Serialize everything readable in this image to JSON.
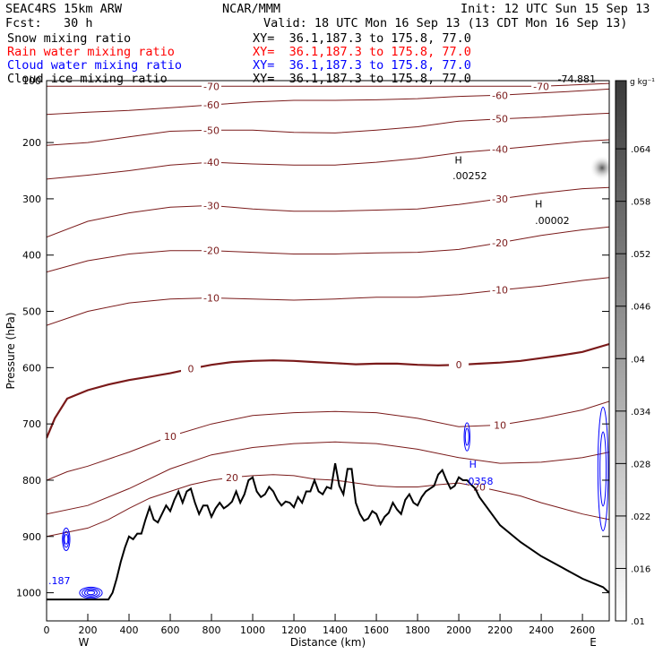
{
  "header": {
    "model": "SEAC4RS 15km ARW",
    "center": "NCAR/MMM",
    "init": "Init: 12 UTC Sun 15 Sep 13",
    "fcst": "Fcst:   30 h",
    "valid": "Valid: 18 UTC Mon 16 Sep 13 (13 CDT Mon 16 Sep 13)",
    "fields": [
      {
        "name": "Snow mixing ratio",
        "xy": "XY=  36.1,187.3 to 175.8, 77.0",
        "color": "#000000"
      },
      {
        "name": "Rain water mixing ratio",
        "xy": "XY=  36.1,187.3 to 175.8, 77.0",
        "color": "#ff0000"
      },
      {
        "name": "Cloud water mixing ratio",
        "xy": "XY=  36.1,187.3 to 175.8, 77.0",
        "color": "#0000ff"
      },
      {
        "name": "Cloud ice mixing ratio",
        "xy": "XY=  36.1,187.3 to 175.8, 77.0",
        "color": "#000000"
      }
    ]
  },
  "chart_data": {
    "type": "line",
    "xlabel": "Distance (km)",
    "ylabel": "Pressure (hPa)",
    "xlim": [
      0,
      2730
    ],
    "ylim": [
      1050,
      90
    ],
    "x_ticks": [
      0,
      200,
      400,
      600,
      800,
      1000,
      1200,
      1400,
      1600,
      1800,
      2000,
      2200,
      2400,
      2600
    ],
    "y_ticks": [
      200,
      300,
      400,
      500,
      600,
      700,
      800,
      900,
      1000
    ],
    "y_top_label": "100",
    "west_label": "W",
    "east_label": "E",
    "temperature_contours": [
      {
        "label": "-70",
        "x": [
          0,
          400,
          800,
          1200,
          1600,
          2000,
          2400,
          2730
        ],
        "p": [
          100,
          100,
          100,
          100,
          100,
          100,
          100,
          95
        ]
      },
      {
        "label": "-60",
        "x": [
          0,
          200,
          400,
          600,
          800,
          1000,
          1200,
          1400,
          1600,
          1800,
          2000,
          2200,
          2400,
          2600,
          2730
        ],
        "p": [
          150,
          146,
          143,
          138,
          133,
          128,
          125,
          125,
          124,
          122,
          118,
          116,
          112,
          108,
          105
        ]
      },
      {
        "label": "-50",
        "x": [
          0,
          200,
          400,
          600,
          800,
          1000,
          1200,
          1400,
          1600,
          1800,
          2000,
          2200,
          2400,
          2600,
          2730
        ],
        "p": [
          205,
          200,
          190,
          180,
          178,
          178,
          182,
          183,
          178,
          172,
          162,
          158,
          155,
          150,
          148
        ]
      },
      {
        "label": "-40",
        "x": [
          0,
          200,
          400,
          600,
          800,
          1000,
          1200,
          1400,
          1600,
          1800,
          2000,
          2200,
          2400,
          2600,
          2730
        ],
        "p": [
          265,
          258,
          250,
          240,
          235,
          238,
          240,
          240,
          235,
          228,
          218,
          212,
          205,
          198,
          195
        ]
      },
      {
        "label": "-30",
        "x": [
          0,
          200,
          400,
          600,
          800,
          1000,
          1200,
          1400,
          1600,
          1800,
          2000,
          2200,
          2400,
          2600,
          2730
        ],
        "p": [
          368,
          340,
          325,
          315,
          312,
          318,
          322,
          322,
          320,
          318,
          310,
          300,
          290,
          282,
          280
        ]
      },
      {
        "label": "-20",
        "x": [
          0,
          200,
          400,
          600,
          800,
          1000,
          1200,
          1400,
          1600,
          1800,
          2000,
          2200,
          2400,
          2600,
          2730
        ],
        "p": [
          430,
          410,
          398,
          392,
          392,
          395,
          398,
          398,
          396,
          395,
          390,
          378,
          365,
          355,
          350
        ]
      },
      {
        "label": "-10",
        "x": [
          0,
          200,
          400,
          600,
          800,
          1000,
          1200,
          1400,
          1600,
          1800,
          2000,
          2200,
          2400,
          2600,
          2730
        ],
        "p": [
          525,
          500,
          485,
          478,
          476,
          478,
          480,
          478,
          475,
          475,
          470,
          462,
          455,
          445,
          440
        ]
      },
      {
        "label": "0",
        "bold": true,
        "x": [
          0,
          40,
          100,
          200,
          300,
          400,
          500,
          600,
          700,
          800,
          900,
          1000,
          1100,
          1200,
          1300,
          1400,
          1500,
          1600,
          1700,
          1800,
          1900,
          2000,
          2100,
          2200,
          2300,
          2400,
          2500,
          2600,
          2730
        ],
        "p": [
          725,
          690,
          655,
          640,
          630,
          622,
          616,
          610,
          602,
          595,
          590,
          588,
          587,
          588,
          590,
          592,
          594,
          593,
          593,
          595,
          596,
          595,
          593,
          591,
          588,
          583,
          578,
          572,
          558
        ]
      },
      {
        "label": "10",
        "x": [
          0,
          100,
          200,
          400,
          600,
          800,
          1000,
          1200,
          1400,
          1600,
          1800,
          2000,
          2200,
          2400,
          2600,
          2730
        ],
        "p": [
          800,
          785,
          775,
          750,
          722,
          700,
          685,
          680,
          678,
          680,
          690,
          705,
          702,
          690,
          675,
          660
        ]
      },
      {
        "label": "",
        "x": [
          0,
          200,
          400,
          600,
          800,
          1000,
          1200,
          1400,
          1600,
          1800,
          2000,
          2200,
          2400,
          2600,
          2730
        ],
        "p": [
          860,
          845,
          815,
          780,
          755,
          742,
          735,
          732,
          735,
          745,
          760,
          770,
          768,
          760,
          750,
          742
        ]
      },
      {
        "label": "20",
        "x": [
          0,
          200,
          300,
          400,
          500,
          600,
          700,
          800,
          900,
          1000,
          1100,
          1200,
          1300,
          1400,
          1500,
          1600,
          1700,
          1800,
          1900,
          2000,
          2100,
          2200,
          2300,
          2400,
          2500,
          2600,
          2730
        ],
        "p": [
          900,
          885,
          870,
          850,
          832,
          820,
          808,
          800,
          795,
          792,
          790,
          792,
          798,
          800,
          805,
          810,
          812,
          812,
          808,
          805,
          812,
          820,
          828,
          840,
          850,
          860,
          870
        ]
      }
    ],
    "terrain": {
      "x": [
        0,
        300,
        320,
        340,
        360,
        380,
        400,
        420,
        440,
        460,
        480,
        500,
        520,
        540,
        560,
        580,
        600,
        620,
        640,
        660,
        680,
        700,
        720,
        740,
        760,
        780,
        800,
        820,
        840,
        860,
        880,
        900,
        920,
        940,
        960,
        980,
        1000,
        1020,
        1040,
        1060,
        1080,
        1100,
        1120,
        1140,
        1160,
        1180,
        1200,
        1220,
        1240,
        1260,
        1280,
        1300,
        1320,
        1340,
        1360,
        1380,
        1400,
        1420,
        1440,
        1460,
        1480,
        1500,
        1520,
        1540,
        1560,
        1580,
        1600,
        1620,
        1640,
        1660,
        1680,
        1700,
        1720,
        1740,
        1760,
        1780,
        1800,
        1820,
        1840,
        1860,
        1880,
        1900,
        1920,
        1940,
        1960,
        1980,
        2000,
        2020,
        2040,
        2060,
        2080,
        2100,
        2200,
        2300,
        2400,
        2500,
        2600,
        2700,
        2730
      ],
      "p": [
        1012,
        1012,
        1000,
        975,
        945,
        920,
        900,
        905,
        895,
        895,
        870,
        848,
        870,
        875,
        860,
        845,
        855,
        835,
        820,
        840,
        820,
        815,
        840,
        860,
        845,
        845,
        865,
        850,
        840,
        850,
        845,
        838,
        820,
        840,
        825,
        800,
        795,
        820,
        830,
        825,
        812,
        820,
        835,
        845,
        838,
        840,
        848,
        830,
        840,
        820,
        820,
        800,
        820,
        825,
        812,
        815,
        770,
        810,
        825,
        780,
        780,
        840,
        860,
        872,
        868,
        855,
        860,
        878,
        865,
        858,
        840,
        852,
        860,
        835,
        825,
        840,
        845,
        830,
        820,
        815,
        810,
        790,
        782,
        800,
        815,
        810,
        795,
        800,
        800,
        808,
        815,
        830,
        880,
        910,
        935,
        955,
        975,
        990,
        1000
      ]
    },
    "cloud_water": [
      {
        "cx": 95,
        "cp": 905,
        "rx": 18,
        "rp": 20,
        "n": 3
      },
      {
        "cx": 215,
        "cp": 1000,
        "rx": 55,
        "rp": 10,
        "n": 4
      },
      {
        "cx": 2040,
        "cp": 723,
        "rx": 14,
        "rp": 25,
        "n": 2
      },
      {
        "cx": 2700,
        "cp": 780,
        "rx": 25,
        "rp": 110,
        "n": 2
      }
    ],
    "annotations": [
      {
        "text": "H",
        "x": 1980,
        "p": 237,
        "color": "#000000"
      },
      {
        "text": ".00252",
        "x": 1970,
        "p": 265,
        "color": "#000000"
      },
      {
        "text": "H",
        "x": 2370,
        "p": 315,
        "color": "#000000"
      },
      {
        "text": ".00002",
        "x": 2370,
        "p": 345,
        "color": "#000000"
      },
      {
        "text": "H",
        "x": 2050,
        "p": 778,
        "color": "#0000ff"
      },
      {
        "text": ".0358",
        "x": 2030,
        "p": 808,
        "color": "#0000ff"
      },
      {
        "text": ".187",
        "x": 0,
        "p": 985,
        "color": "#0000ff"
      },
      {
        "text": "-74.881",
        "x": 2480,
        "p": 93,
        "color": "#000000"
      }
    ],
    "colorbar": {
      "unit": "g kg⁻¹",
      "labels": [
        ".064",
        ".058",
        ".052",
        ".046",
        ".04",
        ".034",
        ".028",
        ".022",
        ".016",
        ".01"
      ]
    }
  }
}
